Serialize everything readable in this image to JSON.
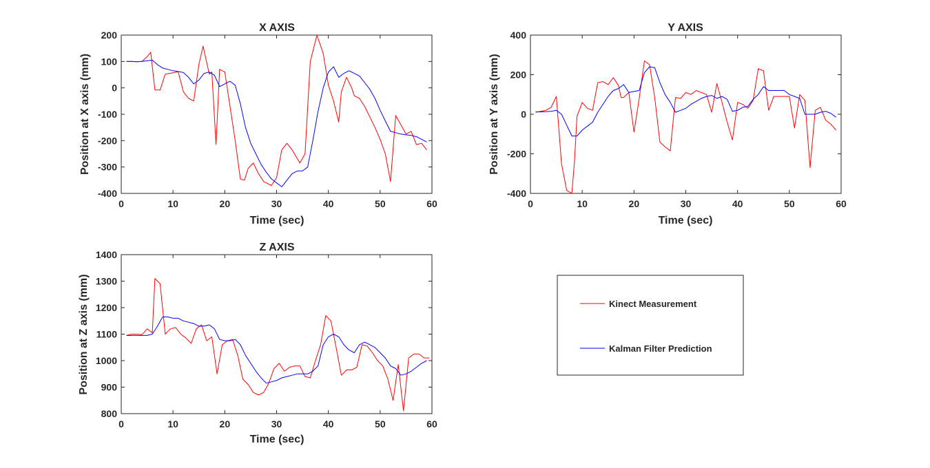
{
  "legend": {
    "entries": [
      {
        "label": "Kinect Measurement",
        "color": "#ff0000"
      },
      {
        "label": "Kalman Filter Prediction",
        "color": "#0000ff"
      }
    ]
  },
  "chart_data": [
    {
      "type": "line",
      "title": "X AXIS",
      "xlabel": "Time (sec)",
      "ylabel": "Position at X axis (mm)",
      "xlim": [
        0,
        60
      ],
      "ylim": [
        -400,
        200
      ],
      "xticks": [
        0,
        10,
        20,
        30,
        40,
        50,
        60
      ],
      "yticks": [
        -400,
        -300,
        -200,
        -100,
        0,
        100,
        200
      ],
      "series": [
        {
          "name": "Kinect Measurement",
          "color": "#ff0000",
          "x": [
            1,
            2,
            3,
            4,
            5,
            5.7,
            6.5,
            7.5,
            8.5,
            10,
            11,
            12,
            13,
            14,
            15,
            15.8,
            17,
            17.5,
            18.3,
            19,
            20,
            21,
            22,
            23,
            23.8,
            24.5,
            25.5,
            26.5,
            27.5,
            29,
            30,
            31,
            32,
            33,
            34.5,
            35.5,
            36.5,
            37.8,
            39,
            40,
            41,
            42,
            42.5,
            43.5,
            44.5,
            45,
            46,
            47,
            48,
            49,
            50,
            51,
            52,
            53,
            54,
            55,
            56,
            57,
            58,
            59
          ],
          "values": [
            100,
            100,
            99,
            100,
            118,
            135,
            -8,
            -8,
            52,
            57,
            61,
            -15,
            -40,
            -50,
            90,
            158,
            52,
            60,
            -215,
            70,
            60,
            -70,
            -200,
            -345,
            -350,
            -305,
            -285,
            -325,
            -355,
            -370,
            -340,
            -235,
            -210,
            -235,
            -285,
            -250,
            100,
            200,
            130,
            10,
            -50,
            -130,
            -15,
            40,
            0,
            -30,
            -40,
            -70,
            -110,
            -150,
            -195,
            -250,
            -355,
            -105,
            -140,
            -175,
            -165,
            -215,
            -210,
            -235
          ]
        },
        {
          "name": "Kalman Filter Prediction",
          "color": "#0000ff",
          "x": [
            1,
            2,
            3,
            4,
            5,
            6,
            7,
            8,
            9,
            10,
            11,
            12,
            13,
            14,
            15,
            16,
            17,
            18,
            19,
            20,
            21,
            22,
            23,
            24,
            25,
            26,
            27,
            28,
            29,
            30,
            31,
            32,
            33,
            34,
            35,
            36,
            37,
            38,
            39,
            40,
            41,
            42,
            43,
            44,
            45,
            46,
            47,
            48,
            49,
            50,
            51,
            52,
            53,
            54,
            55,
            56,
            57,
            58,
            59
          ],
          "values": [
            100,
            100,
            99,
            100,
            103,
            105,
            88,
            75,
            70,
            65,
            62,
            58,
            40,
            15,
            30,
            55,
            60,
            48,
            5,
            15,
            25,
            10,
            -60,
            -150,
            -210,
            -250,
            -290,
            -320,
            -345,
            -360,
            -375,
            -350,
            -325,
            -315,
            -315,
            -300,
            -200,
            -90,
            0,
            60,
            80,
            40,
            55,
            65,
            55,
            45,
            20,
            -5,
            -40,
            -85,
            -125,
            -165,
            -170,
            -175,
            -178,
            -180,
            -185,
            -195,
            -205
          ]
        }
      ]
    },
    {
      "type": "line",
      "title": "Y AXIS",
      "xlabel": "Time (sec)",
      "ylabel": "Position at Y axis (mm)",
      "xlim": [
        0,
        60
      ],
      "ylim": [
        -400,
        400
      ],
      "xticks": [
        0,
        10,
        20,
        30,
        40,
        50,
        60
      ],
      "yticks": [
        -400,
        -200,
        0,
        200,
        400
      ],
      "series": [
        {
          "name": "Kinect Measurement",
          "color": "#ff0000",
          "x": [
            1,
            2,
            3,
            4,
            5,
            6,
            7,
            8,
            8.5,
            9,
            10,
            11,
            12,
            13,
            14,
            15,
            16,
            17,
            17.5,
            18,
            19,
            20,
            21,
            22,
            23,
            24,
            25,
            26,
            27,
            28,
            29,
            30,
            31,
            32,
            33,
            34,
            35,
            36,
            37,
            38,
            39,
            40,
            41,
            42,
            43,
            44,
            45,
            46,
            47,
            48,
            49,
            50,
            51,
            52,
            53,
            54,
            55,
            56,
            57,
            58,
            59
          ],
          "values": [
            10,
            15,
            20,
            35,
            90,
            -250,
            -385,
            -400,
            -240,
            -10,
            60,
            30,
            20,
            160,
            165,
            150,
            185,
            145,
            85,
            85,
            110,
            -90,
            80,
            270,
            250,
            85,
            -140,
            -165,
            -185,
            85,
            80,
            110,
            100,
            120,
            110,
            100,
            10,
            155,
            60,
            -40,
            -130,
            60,
            50,
            30,
            70,
            230,
            220,
            20,
            90,
            90,
            90,
            90,
            -70,
            100,
            70,
            -270,
            20,
            35,
            -30,
            -50,
            -80
          ]
        },
        {
          "name": "Kalman Filter Prediction",
          "color": "#0000ff",
          "x": [
            1,
            2,
            3,
            4,
            5,
            6,
            7,
            8,
            9,
            10,
            11,
            12,
            13,
            14,
            15,
            16,
            17,
            18,
            19,
            20,
            21,
            22,
            23,
            24,
            25,
            26,
            27,
            28,
            29,
            30,
            31,
            32,
            33,
            34,
            35,
            36,
            37,
            38,
            39,
            40,
            41,
            42,
            43,
            44,
            45,
            46,
            47,
            48,
            49,
            50,
            51,
            52,
            53,
            54,
            55,
            56,
            57,
            58,
            59
          ],
          "values": [
            12,
            12,
            13,
            15,
            20,
            0,
            -55,
            -110,
            -110,
            -80,
            -60,
            -40,
            10,
            50,
            90,
            120,
            130,
            150,
            110,
            115,
            120,
            210,
            240,
            235,
            160,
            100,
            60,
            10,
            20,
            30,
            50,
            65,
            80,
            90,
            95,
            80,
            90,
            75,
            15,
            20,
            35,
            40,
            75,
            100,
            140,
            120,
            120,
            120,
            120,
            100,
            90,
            80,
            0,
            0,
            0,
            10,
            15,
            5,
            -15
          ]
        }
      ]
    },
    {
      "type": "line",
      "title": "Z AXIS",
      "xlabel": "Time (sec)",
      "ylabel": "Position at Z axis (mm)",
      "xlim": [
        0,
        60
      ],
      "ylim": [
        800,
        1400
      ],
      "xticks": [
        0,
        10,
        20,
        30,
        40,
        50,
        60
      ],
      "yticks": [
        800,
        900,
        1000,
        1100,
        1200,
        1300,
        1400
      ],
      "series": [
        {
          "name": "Kinect Measurement",
          "color": "#ff0000",
          "x": [
            1,
            2,
            3,
            4,
            5,
            6,
            6.5,
            7.5,
            8.5,
            9.5,
            10.5,
            11.5,
            12.5,
            13.5,
            14.5,
            15.5,
            16.5,
            17.5,
            18.5,
            19.5,
            20.5,
            21.5,
            22.5,
            23.5,
            24.5,
            25.5,
            26.5,
            27.5,
            28.5,
            29.5,
            30.5,
            31.5,
            32.5,
            33.5,
            34.5,
            35.5,
            36.5,
            37.5,
            38.5,
            39.5,
            40.5,
            41.5,
            42.5,
            43.5,
            44.5,
            45.5,
            46.5,
            47.5,
            48.5,
            49.5,
            50.5,
            51.5,
            52.5,
            53.5,
            54.5,
            55.5,
            56.5,
            57.5,
            58.5,
            59.5
          ],
          "values": [
            1095,
            1100,
            1100,
            1098,
            1120,
            1105,
            1310,
            1290,
            1100,
            1120,
            1125,
            1100,
            1085,
            1065,
            1120,
            1135,
            1075,
            1090,
            950,
            1060,
            1075,
            1080,
            1020,
            930,
            910,
            880,
            870,
            880,
            915,
            970,
            990,
            960,
            975,
            980,
            980,
            940,
            935,
            1000,
            1060,
            1170,
            1150,
            1050,
            945,
            965,
            965,
            975,
            1060,
            1055,
            1030,
            1000,
            980,
            930,
            850,
            985,
            810,
            1010,
            1025,
            1025,
            1010,
            1010
          ]
        },
        {
          "name": "Kalman Filter Prediction",
          "color": "#0000ff",
          "x": [
            1,
            2,
            3,
            4,
            5,
            6,
            7,
            8,
            9,
            10,
            11,
            12,
            13,
            14,
            15,
            16,
            17,
            18,
            19,
            20,
            21,
            22,
            23,
            24,
            25,
            26,
            27,
            28,
            29,
            30,
            31,
            32,
            33,
            34,
            35,
            36,
            37,
            38,
            39,
            40,
            41,
            42,
            43,
            44,
            45,
            46,
            47,
            48,
            49,
            50,
            51,
            52,
            53,
            54,
            55,
            56,
            57,
            58,
            59
          ],
          "values": [
            1095,
            1095,
            1095,
            1095,
            1095,
            1100,
            1130,
            1165,
            1165,
            1160,
            1160,
            1150,
            1145,
            1140,
            1130,
            1130,
            1135,
            1120,
            1080,
            1075,
            1075,
            1080,
            1060,
            1020,
            990,
            960,
            935,
            915,
            920,
            925,
            935,
            940,
            945,
            950,
            950,
            950,
            960,
            980,
            1060,
            1090,
            1100,
            1090,
            1060,
            1040,
            1030,
            1060,
            1070,
            1060,
            1050,
            1030,
            1010,
            980,
            970,
            945,
            950,
            960,
            975,
            990,
            1000
          ]
        }
      ]
    }
  ]
}
